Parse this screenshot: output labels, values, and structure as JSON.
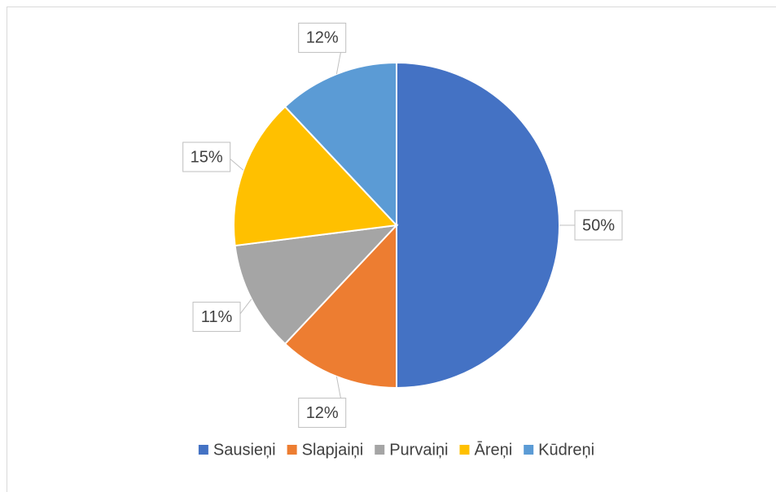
{
  "chart_data": {
    "type": "pie",
    "categories": [
      "Sausieņi",
      "Slapjaiņi",
      "Purvaiņi",
      "Āreņi",
      "Kūdreņi"
    ],
    "values": [
      50,
      12,
      11,
      15,
      12
    ],
    "value_labels": [
      "50%",
      "12%",
      "11%",
      "15%",
      "12%"
    ],
    "colors": [
      "#4472c4",
      "#ed7d31",
      "#a5a5a5",
      "#ffc000",
      "#5b9bd5"
    ],
    "legend": "bottom"
  }
}
